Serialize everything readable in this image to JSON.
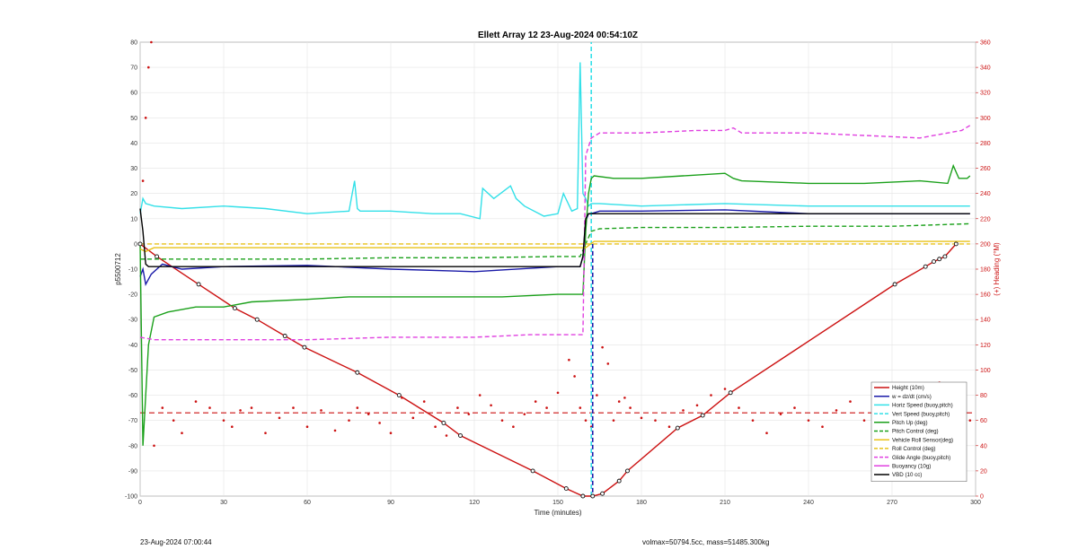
{
  "chart_data": {
    "type": "line",
    "title": "Ellett Array 12 23-Aug-2024 00:54:10Z",
    "xlabel": "Time (minutes)",
    "ylabel": "p5500712",
    "ylabel_right": "(+) Heading (°M)",
    "xlim": [
      0,
      300
    ],
    "ylim": [
      -100,
      80
    ],
    "ylim_right": [
      0,
      360
    ],
    "xticks": [
      0,
      30,
      60,
      90,
      120,
      150,
      180,
      210,
      240,
      270,
      300
    ],
    "yticks": [
      -100,
      -90,
      -80,
      -70,
      -60,
      -50,
      -40,
      -30,
      -20,
      -10,
      0,
      10,
      20,
      30,
      40,
      50,
      60,
      70,
      80
    ],
    "yticks_right": [
      0,
      20,
      40,
      60,
      80,
      100,
      120,
      140,
      160,
      180,
      200,
      220,
      240,
      260,
      280,
      300,
      320,
      340,
      360
    ],
    "grid": true,
    "legend_position": "bottom-right",
    "apogee_minute": 162.5,
    "series": [
      {
        "name": "Height (10m)",
        "color": "#cc1111",
        "style": "solid-marked",
        "x": [
          0,
          6,
          21,
          34,
          42,
          52,
          59,
          78,
          93,
          109,
          115,
          141,
          153,
          159,
          162.5,
          166,
          172,
          175,
          193,
          202,
          212,
          271,
          282,
          285,
          287,
          289,
          293
        ],
        "y": [
          0,
          -5,
          -16,
          -25.5,
          -30,
          -36.5,
          -41,
          -51,
          -60,
          -71,
          -76,
          -90,
          -97,
          -100,
          -100,
          -99,
          -94,
          -90,
          -73,
          -68,
          -59,
          -16,
          -9,
          -7,
          -6,
          -5,
          0
        ]
      },
      {
        "name": "w = dz/dt (cm/s)",
        "color": "#1a1aa8",
        "style": "solid",
        "x": [
          0,
          1,
          2,
          4,
          8,
          15,
          30,
          60,
          90,
          120,
          150,
          158,
          159,
          160,
          161,
          162,
          165,
          180,
          210,
          240,
          270,
          298
        ],
        "y": [
          -13,
          -10,
          -16,
          -12,
          -8,
          -10,
          -9,
          -8.5,
          -10,
          -11,
          -9,
          -9,
          -5,
          9,
          12,
          12,
          13,
          13,
          13.5,
          12,
          12,
          12
        ]
      },
      {
        "name": "Horiz Speed (buoy,pitch)",
        "color": "#33e0e8",
        "style": "solid",
        "x": [
          0,
          1,
          2,
          5,
          15,
          30,
          45,
          60,
          75,
          77,
          78,
          79,
          90,
          105,
          115,
          122,
          123,
          127,
          133,
          135,
          138,
          145,
          150,
          152,
          155,
          157,
          158,
          159,
          160,
          161,
          162,
          165,
          180,
          210,
          240,
          270,
          298
        ],
        "y": [
          12,
          18,
          16,
          15,
          14,
          15,
          14,
          12,
          13,
          25,
          14,
          13,
          13,
          12,
          12,
          10,
          22,
          18,
          23,
          18,
          15,
          11,
          12,
          20,
          13,
          14,
          72,
          20,
          18,
          15,
          16,
          16,
          15,
          16,
          15,
          15,
          15
        ]
      },
      {
        "name": "Vert Speed (buoy,pitch)",
        "color": "#33e0e8",
        "style": "dashed",
        "x": [
          162,
          162
        ],
        "y": [
          -100,
          80
        ]
      },
      {
        "name": "Pitch Up (deg)",
        "color": "#1aa01a",
        "style": "solid",
        "x": [
          0,
          1,
          2,
          3,
          5,
          10,
          20,
          30,
          40,
          60,
          75,
          90,
          110,
          130,
          150,
          159,
          160,
          161,
          162,
          163,
          170,
          180,
          195,
          210,
          213,
          216,
          240,
          260,
          280,
          290,
          292,
          294,
          297,
          298
        ],
        "y": [
          0,
          -80,
          -60,
          -40,
          -29,
          -27,
          -25,
          -25,
          -23,
          -22,
          -21,
          -21,
          -21,
          -21,
          -20,
          -20,
          5,
          20,
          26,
          27,
          26,
          26,
          27,
          28,
          26,
          25,
          24,
          24,
          25,
          24,
          31,
          26,
          26,
          27
        ]
      },
      {
        "name": "Pitch Control (deg)",
        "color": "#1aa01a",
        "style": "dashed",
        "x": [
          0,
          5,
          30,
          60,
          90,
          120,
          150,
          158,
          162,
          165,
          180,
          210,
          240,
          270,
          298
        ],
        "y": [
          -6,
          -6,
          -6,
          -6,
          -5.5,
          -5.5,
          -5,
          -5,
          5,
          6,
          6.5,
          6.5,
          7,
          7,
          8
        ]
      },
      {
        "name": "Vehicle Roll Sensor(deg)",
        "color": "#e8c21a",
        "style": "solid",
        "x": [
          0,
          2,
          5,
          30,
          60,
          90,
          120,
          150,
          160,
          163,
          180,
          210,
          240,
          270,
          298
        ],
        "y": [
          -2,
          -3,
          -1.5,
          -1.5,
          -1.5,
          -1.5,
          -1.5,
          -1.5,
          -1.5,
          1,
          1,
          1,
          1,
          1,
          1
        ]
      },
      {
        "name": "Roll Control (deg)",
        "color": "#e8c21a",
        "style": "dashed",
        "x": [
          0,
          30,
          60,
          90,
          120,
          150,
          160,
          163,
          180,
          210,
          240,
          270,
          298
        ],
        "y": [
          0,
          0,
          0,
          0,
          0,
          0,
          0,
          0,
          0,
          0,
          0,
          0,
          0
        ]
      },
      {
        "name": "Glide Angle (buoy,pitch)",
        "color": "#e040e0",
        "style": "dashed",
        "x": [
          0,
          5,
          15,
          30,
          60,
          90,
          120,
          140,
          150,
          159,
          160,
          162,
          165,
          180,
          200,
          210,
          213,
          216,
          240,
          260,
          280,
          290,
          295,
          298
        ],
        "y": [
          -37,
          -38,
          -38,
          -38,
          -38,
          -37,
          -37,
          -36,
          -36,
          -36,
          35,
          42,
          44,
          44,
          45,
          45,
          46,
          44,
          44,
          43,
          42,
          44,
          45,
          47
        ]
      },
      {
        "name": "Buoyancy (10g)",
        "color": "#e040e0",
        "style": "solid",
        "x": [],
        "y": []
      },
      {
        "name": "VBD (10 cc)",
        "color": "#000000",
        "style": "solid",
        "x": [
          0,
          1,
          2,
          3,
          30,
          60,
          90,
          120,
          150,
          158,
          159,
          160,
          161,
          162,
          163,
          180,
          210,
          240,
          270,
          298
        ],
        "y": [
          14,
          5,
          -8,
          -9,
          -9,
          -9,
          -9,
          -9,
          -9,
          -9,
          -5,
          10,
          12,
          12,
          12,
          12,
          12,
          12,
          12,
          12
        ]
      }
    ],
    "heading": {
      "name": "(+) Heading (°M)",
      "color": "#cc1111",
      "axis": "right",
      "style": "dotted",
      "x": [
        0,
        1,
        2,
        3,
        4,
        5,
        8,
        12,
        15,
        20,
        25,
        30,
        33,
        36,
        40,
        45,
        50,
        55,
        60,
        65,
        70,
        75,
        78,
        82,
        86,
        90,
        94,
        98,
        102,
        106,
        110,
        114,
        118,
        122,
        126,
        130,
        134,
        138,
        142,
        146,
        150,
        154,
        156,
        158,
        160,
        162,
        164,
        166,
        168,
        170,
        172,
        174,
        176,
        180,
        185,
        190,
        195,
        200,
        205,
        210,
        215,
        220,
        225,
        230,
        235,
        240,
        245,
        250,
        255,
        260,
        265,
        270,
        275,
        280,
        283,
        285,
        287,
        289,
        291,
        293,
        295,
        298
      ],
      "y": [
        200,
        250,
        300,
        340,
        360,
        40,
        70,
        60,
        50,
        75,
        70,
        60,
        55,
        68,
        70,
        50,
        62,
        70,
        55,
        68,
        52,
        60,
        70,
        65,
        58,
        50,
        78,
        62,
        75,
        55,
        48,
        70,
        65,
        80,
        72,
        60,
        55,
        65,
        75,
        70,
        82,
        108,
        95,
        70,
        60,
        55,
        80,
        118,
        105,
        60,
        75,
        78,
        70,
        62,
        60,
        55,
        68,
        72,
        80,
        85,
        70,
        60,
        50,
        65,
        70,
        60,
        55,
        68,
        75,
        60,
        50,
        65,
        78,
        70,
        55,
        80,
        90,
        45,
        60,
        70,
        65,
        60
      ]
    },
    "heading_reference": {
      "value": 66,
      "axis": "right",
      "style": "dashed",
      "color": "#cc1111"
    }
  },
  "footer": {
    "left": "23-Aug-2024 07:00:44",
    "right": "volmax=50794.5cc, mass=51485.300kg"
  }
}
